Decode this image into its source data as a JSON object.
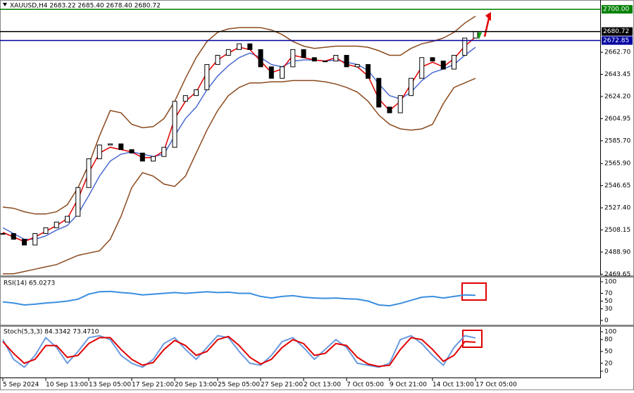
{
  "chart_data": [
    {
      "type": "candlestick",
      "title": "XAUUSD,H4  2683.22 2685.40 2678.40 2680.72",
      "categories": [
        "5 Sep 2024",
        null,
        null,
        null,
        "10 Sep 13:00",
        null,
        null,
        null,
        "13 Sep 05:00",
        null,
        null,
        null,
        "17 Sep 21:00",
        null,
        null,
        null,
        "20 Sep 13:00",
        null,
        null,
        null,
        "25 Sep 05:00",
        null,
        null,
        null,
        "27 Sep 21:00",
        null,
        null,
        null,
        "2 Oct 13:00",
        null,
        null,
        null,
        "7 Oct 05:00",
        null,
        null,
        null,
        "9 Oct 21:00",
        null,
        null,
        null,
        "14 Oct 13:00",
        null,
        null,
        null,
        "17 Oct 05:00"
      ],
      "close": [
        2505,
        2500,
        2495,
        2505,
        2510,
        2515,
        2520,
        2545,
        2570,
        2582,
        2583,
        2578,
        2575,
        2568,
        2572,
        2580,
        2620,
        2625,
        2630,
        2652,
        2660,
        2665,
        2670,
        2665,
        2650,
        2640,
        2650,
        2665,
        2658,
        2655,
        2655,
        2660,
        2650,
        2652,
        2640,
        2615,
        2610,
        2625,
        2640,
        2658,
        2655,
        2648,
        2660,
        2675,
        2680.72
      ],
      "overlays": [
        {
          "color": "#8b4a1e",
          "values": [
            2528,
            2527,
            2524,
            2522,
            2522,
            2524,
            2530,
            2545,
            2565,
            2590,
            2612,
            2610,
            2600,
            2597,
            2598,
            2605,
            2620,
            2640,
            2658,
            2672,
            2680,
            2683,
            2684,
            2684,
            2684,
            2682,
            2678,
            2672,
            2668,
            2666,
            2667,
            2668,
            2668,
            2668,
            2667,
            2664,
            2660,
            2660,
            2666,
            2670,
            2672,
            2675,
            2680,
            2688,
            2694
          ]
        },
        {
          "color": "#8b4a1e",
          "values": [
            2470,
            2470,
            2472,
            2474,
            2476,
            2478,
            2482,
            2486,
            2488,
            2490,
            2500,
            2520,
            2545,
            2558,
            2555,
            2548,
            2546,
            2555,
            2575,
            2595,
            2612,
            2625,
            2632,
            2636,
            2636,
            2637,
            2637,
            2638,
            2638,
            2638,
            2637,
            2635,
            2632,
            2628,
            2620,
            2608,
            2600,
            2596,
            2595,
            2596,
            2600,
            2618,
            2632,
            2636,
            2640
          ]
        },
        {
          "color": "#4a6ad0",
          "values": [
            2510,
            2505,
            2500,
            2500,
            2503,
            2508,
            2512,
            2522,
            2538,
            2555,
            2568,
            2574,
            2576,
            2574,
            2572,
            2574,
            2590,
            2605,
            2615,
            2630,
            2642,
            2651,
            2658,
            2662,
            2658,
            2652,
            2650,
            2655,
            2656,
            2656,
            2655,
            2656,
            2654,
            2652,
            2647,
            2635,
            2625,
            2622,
            2628,
            2638,
            2645,
            2648,
            2652,
            2660,
            2667
          ]
        },
        {
          "color": "#e00000",
          "values": [
            2506,
            2502,
            2498,
            2502,
            2507,
            2512,
            2518,
            2535,
            2558,
            2575,
            2580,
            2578,
            2576,
            2571,
            2571,
            2577,
            2605,
            2620,
            2628,
            2645,
            2656,
            2662,
            2667,
            2665,
            2655,
            2645,
            2648,
            2660,
            2658,
            2656,
            2655,
            2658,
            2652,
            2650,
            2642,
            2622,
            2612,
            2620,
            2635,
            2650,
            2654,
            2650,
            2657,
            2668,
            2676
          ]
        }
      ],
      "levels": [
        {
          "value": 2700,
          "label": "2700.00",
          "color": "#008000"
        },
        {
          "value": 2680.72,
          "label": "2680.72",
          "color": "#000000"
        },
        {
          "value": 2672.85,
          "label": "2672.85",
          "color": "#0000a0"
        }
      ],
      "ylim": [
        2468,
        2708.1
      ],
      "yticks": [
        {
          "value": 2662.7,
          "label": "2662.70"
        },
        2643.45,
        {
          "value": 2624.2,
          "label": "2624.20"
        },
        2604.95,
        {
          "value": 2585.7,
          "label": "2585.70"
        },
        {
          "value": 2565.9,
          "label": "2565.90"
        },
        2546.65,
        {
          "value": 2527.4,
          "label": "2527.40"
        },
        2508.15,
        {
          "value": 2488.9,
          "label": "2488.90"
        },
        2469.65
      ]
    },
    {
      "type": "line",
      "title": "RSI(14) 65.0273",
      "series": [
        {
          "color": "#3a8ee0",
          "values": [
            48,
            45,
            40,
            42,
            45,
            47,
            50,
            55,
            68,
            74,
            75,
            72,
            70,
            66,
            68,
            70,
            72,
            70,
            72,
            74,
            72,
            73,
            70,
            70,
            62,
            58,
            62,
            64,
            60,
            58,
            57,
            58,
            56,
            55,
            50,
            40,
            38,
            44,
            52,
            60,
            62,
            58,
            62,
            66,
            65.0273
          ]
        }
      ],
      "ylim": [
        0,
        100
      ],
      "yticks": [
        100,
        70,
        50,
        30,
        0
      ]
    },
    {
      "type": "line",
      "title": "Stoch(5,3,3) 84.3342 73.4710",
      "series": [
        {
          "color": "#6a9ae0",
          "values": [
            80,
            30,
            10,
            40,
            85,
            60,
            20,
            50,
            85,
            90,
            80,
            40,
            20,
            10,
            30,
            70,
            85,
            55,
            30,
            60,
            90,
            85,
            50,
            20,
            15,
            40,
            75,
            85,
            60,
            30,
            55,
            80,
            60,
            20,
            15,
            10,
            20,
            80,
            90,
            70,
            40,
            15,
            60,
            90,
            84.3342
          ]
        },
        {
          "color": "#e00000",
          "values": [
            75,
            45,
            20,
            30,
            65,
            65,
            35,
            40,
            70,
            85,
            85,
            55,
            30,
            15,
            22,
            55,
            78,
            65,
            40,
            50,
            80,
            88,
            65,
            35,
            18,
            30,
            60,
            80,
            70,
            40,
            45,
            70,
            65,
            35,
            18,
            12,
            15,
            55,
            85,
            80,
            55,
            25,
            40,
            75,
            73.471
          ]
        }
      ],
      "ylim": [
        0,
        100
      ],
      "yticks": [
        100,
        80,
        50,
        20,
        0
      ]
    }
  ]
}
